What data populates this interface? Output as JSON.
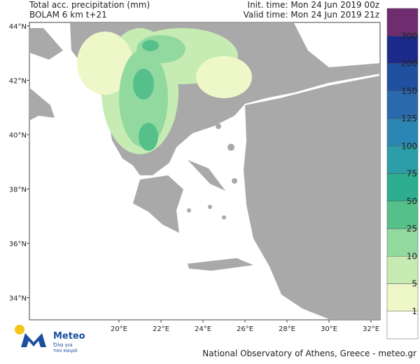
{
  "header": {
    "title": "Total acc. precipitation (mm)",
    "model": "BOLAM 6 km t+21",
    "init_time": "Init. time: Mon 24 Jun 2019 00z",
    "valid_time": "Valid time: Mon 24 Jun 2019 21z"
  },
  "map": {
    "lat_labels": [
      "44°N",
      "42°N",
      "40°N",
      "38°N",
      "36°N",
      "34°N"
    ],
    "lon_labels": [
      "20°E",
      "22°E",
      "24°E",
      "26°E",
      "28°E",
      "30°E",
      "32°E"
    ]
  },
  "colorbar": {
    "levels": [
      1,
      5,
      10,
      25,
      50,
      75,
      100,
      125,
      150,
      200,
      300
    ],
    "colors": [
      "#ffffff",
      "#eef7c8",
      "#c6ecb4",
      "#92d9a0",
      "#56c08a",
      "#2eae90",
      "#2c9ea8",
      "#2b86b4",
      "#2a6aac",
      "#2250a0",
      "#1c2a8c",
      "#6f2d6f"
    ]
  },
  "logo": {
    "name": "Meteo",
    "tagline_1": "Όλα για",
    "tagline_2": "τον καιρό"
  },
  "footer": "National Observatory of Athens, Greece - meteo.gr"
}
